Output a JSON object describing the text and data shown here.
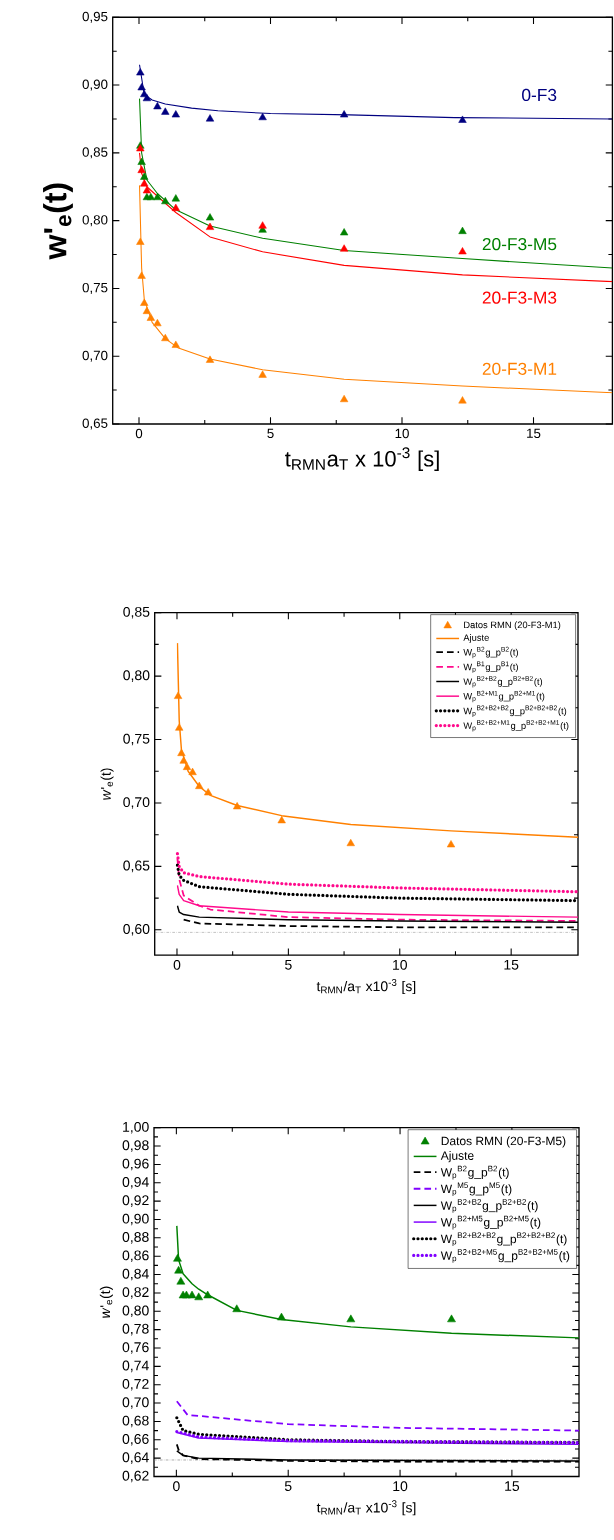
{
  "chart_data": [
    {
      "type": "line",
      "xlabel": "t$_{RMN}$a$_{T}$ x 10$^{-3}$ [s]",
      "ylabel": "w'$_{e}$(t)",
      "xlim": [
        -1,
        18
      ],
      "ylim": [
        0.65,
        0.95
      ],
      "xticks": [
        0,
        5,
        10,
        15
      ],
      "yticks": [
        {
          "value": 0.65,
          "label": "0,65"
        },
        {
          "value": 0.7,
          "label": "0,70"
        },
        {
          "value": 0.75,
          "label": "0,75"
        },
        {
          "value": 0.8,
          "label": "0,80"
        },
        {
          "value": 0.85,
          "label": "0,85"
        },
        {
          "value": 0.9,
          "label": "0,90"
        },
        {
          "value": 0.95,
          "label": "0,95"
        }
      ],
      "legend": false,
      "series": [
        {
          "type": "scatter",
          "marker": "triangle",
          "color": "#000080",
          "x": [
            0.05,
            0.1,
            0.2,
            0.3,
            0.7,
            1.0,
            1.4,
            2.7,
            4.7,
            7.8,
            12.3
          ],
          "values": [
            0.909,
            0.898,
            0.893,
            0.89,
            0.884,
            0.88,
            0.878,
            0.875,
            0.876,
            0.878,
            0.874
          ]
        },
        {
          "type": "line",
          "name": "0-F3",
          "color": "#000080",
          "line_style": "solid",
          "x": [
            0.02,
            0.2,
            0.5,
            1,
            2,
            3,
            5,
            8,
            12,
            18
          ],
          "values": [
            0.915,
            0.893,
            0.889,
            0.886,
            0.883,
            0.881,
            0.879,
            0.878,
            0.876,
            0.875
          ]
        },
        {
          "type": "scatter",
          "marker": "triangle",
          "color": "#008000",
          "x": [
            0.05,
            0.1,
            0.2,
            0.3,
            0.45,
            0.7,
            1.0,
            1.4,
            2.7,
            4.7,
            7.8,
            12.3
          ],
          "values": [
            0.855,
            0.843,
            0.832,
            0.817,
            0.817,
            0.817,
            0.814,
            0.816,
            0.802,
            0.793,
            0.791,
            0.792
          ]
        },
        {
          "type": "line",
          "name": "20-F3-M5",
          "color": "#008000",
          "line_style": "solid",
          "x": [
            0.02,
            0.1,
            0.3,
            0.7,
            1.4,
            2.7,
            4.7,
            7.8,
            12.3,
            18
          ],
          "values": [
            0.89,
            0.85,
            0.83,
            0.82,
            0.808,
            0.796,
            0.787,
            0.778,
            0.772,
            0.765
          ]
        },
        {
          "type": "scatter",
          "marker": "triangle",
          "color": "#ff0000",
          "x": [
            0.05,
            0.1,
            0.2,
            0.3,
            1.4,
            2.7,
            4.7,
            7.8,
            12.3
          ],
          "values": [
            0.853,
            0.837,
            0.827,
            0.822,
            0.809,
            0.795,
            0.796,
            0.779,
            0.777
          ]
        },
        {
          "type": "line",
          "name": "20-F3-M3",
          "color": "#ff0000",
          "line_style": "solid",
          "x": [
            0.02,
            0.1,
            0.3,
            0.7,
            1.4,
            2.7,
            4.7,
            7.8,
            12.3,
            18
          ],
          "values": [
            0.85,
            0.835,
            0.825,
            0.818,
            0.806,
            0.788,
            0.777,
            0.767,
            0.76,
            0.755
          ]
        },
        {
          "type": "scatter",
          "marker": "triangle",
          "color": "#ff8000",
          "x": [
            0.05,
            0.1,
            0.2,
            0.3,
            0.45,
            0.7,
            1.0,
            1.4,
            2.7,
            4.7,
            7.8,
            12.3
          ],
          "values": [
            0.784,
            0.759,
            0.739,
            0.733,
            0.728,
            0.724,
            0.713,
            0.708,
            0.697,
            0.686,
            0.668,
            0.667
          ]
        },
        {
          "type": "line",
          "name": "20-F3-M1",
          "color": "#ff8000",
          "line_style": "solid",
          "x": [
            0.02,
            0.1,
            0.2,
            0.5,
            1,
            1.5,
            2.7,
            4.7,
            7.8,
            12.3,
            18
          ],
          "values": [
            0.826,
            0.765,
            0.742,
            0.725,
            0.713,
            0.706,
            0.698,
            0.69,
            0.683,
            0.678,
            0.673
          ]
        }
      ]
    },
    {
      "type": "line",
      "xlabel": "t$_{RMN}$/a$_{T}$ x10$^{-3}$ [s]",
      "ylabel": "*w*'$_{e}$(t)",
      "xlim": [
        -1,
        18
      ],
      "ylim": [
        0.58,
        0.85
      ],
      "xticks": [
        0,
        5,
        10,
        15
      ],
      "yticks": [
        {
          "value": 0.6,
          "label": "0,60"
        },
        {
          "value": 0.65,
          "label": "0,65"
        },
        {
          "value": 0.7,
          "label": "0,70"
        },
        {
          "value": 0.75,
          "label": "0,75"
        },
        {
          "value": 0.8,
          "label": "0,80"
        },
        {
          "value": 0.85,
          "label": "0,85"
        }
      ],
      "legend": "top right",
      "ref_lines": [
        {
          "axis": "y",
          "value": 0.598,
          "color": "#808080",
          "line_style": "dotted"
        }
      ],
      "series": [
        {
          "type": "scatter",
          "name": "Datos RMN (20-F3-M1)",
          "marker": "triangle",
          "color": "#ff8000",
          "x": [
            0.05,
            0.1,
            0.2,
            0.3,
            0.45,
            0.7,
            1.0,
            1.4,
            2.7,
            4.7,
            7.8,
            12.3
          ],
          "values": [
            0.784,
            0.759,
            0.739,
            0.733,
            0.728,
            0.724,
            0.713,
            0.708,
            0.697,
            0.686,
            0.668,
            0.667
          ]
        },
        {
          "type": "line",
          "name": "Ajuste",
          "color": "#ff8000",
          "line_style": "solid",
          "x": [
            0.02,
            0.1,
            0.2,
            0.5,
            1,
            1.5,
            2.7,
            4.7,
            7.8,
            12.3,
            18
          ],
          "values": [
            0.826,
            0.765,
            0.742,
            0.725,
            0.713,
            0.706,
            0.698,
            0.69,
            0.683,
            0.678,
            0.673
          ]
        },
        {
          "type": "line",
          "name": "W$_{p}$$^{B2}$g_p$^{B2}$(t)",
          "color": "#000000",
          "line_style": "dashed",
          "x": [
            0.3,
            1,
            5,
            10,
            18
          ],
          "values": [
            0.608,
            0.605,
            0.603,
            0.602,
            0.602
          ]
        },
        {
          "type": "line",
          "name": "W$_{p}$$^{B1}$g_p$^{B1}$(t)",
          "color": "#ff0a8c",
          "line_style": "dashed",
          "x": [
            0.02,
            0.1,
            0.3,
            1,
            1.5,
            5,
            10,
            18
          ],
          "values": [
            0.656,
            0.64,
            0.627,
            0.619,
            0.616,
            0.61,
            0.608,
            0.607
          ]
        },
        {
          "type": "line",
          "name": "W$_{p}$$^{B2+B2}$g_p$^{B2+B2}$(t)",
          "color": "#000000",
          "line_style": "solid",
          "x": [
            0.02,
            0.1,
            0.3,
            1,
            5,
            10,
            18
          ],
          "values": [
            0.619,
            0.614,
            0.612,
            0.61,
            0.608,
            0.607,
            0.606
          ]
        },
        {
          "type": "line",
          "name": "W$_{p}$$^{B2+M1}$g_p$^{B2+M1}$(t)",
          "color": "#ff0a8c",
          "line_style": "solid",
          "x": [
            0.02,
            0.1,
            0.3,
            1,
            5,
            10,
            18
          ],
          "values": [
            0.635,
            0.628,
            0.623,
            0.619,
            0.614,
            0.612,
            0.61
          ]
        },
        {
          "type": "line",
          "name": "W$_{p}$$^{B2+B2+B2}$g_p$^{B2+B2+B2}$(t)",
          "color": "#000000",
          "line_style": "dotted",
          "x": [
            0.02,
            0.1,
            0.3,
            1,
            5,
            10,
            18
          ],
          "values": [
            0.651,
            0.643,
            0.639,
            0.634,
            0.628,
            0.625,
            0.623
          ]
        },
        {
          "type": "line",
          "name": "W$_{p}$$^{B2+B2+M1}$g_p$^{B2+B2+M1}$(t)",
          "color": "#ff0a8c",
          "line_style": "dotted",
          "x": [
            0.02,
            0.1,
            0.3,
            1,
            5,
            10,
            18
          ],
          "values": [
            0.66,
            0.65,
            0.645,
            0.642,
            0.636,
            0.633,
            0.63
          ]
        }
      ]
    },
    {
      "type": "line",
      "xlabel": "t$_{RMN}$/a$_{T}$ x10$^{-3}$ [s]",
      "ylabel": "*w*'$_{e}$(t)",
      "xlim": [
        -1,
        18
      ],
      "ylim": [
        0.62,
        1.0
      ],
      "xticks": [
        0,
        5,
        10,
        15
      ],
      "yticks": [
        {
          "value": 0.62,
          "label": "0,62"
        },
        {
          "value": 0.64,
          "label": "0,64"
        },
        {
          "value": 0.66,
          "label": "0,66"
        },
        {
          "value": 0.68,
          "label": "0,68"
        },
        {
          "value": 0.7,
          "label": "0,70"
        },
        {
          "value": 0.72,
          "label": "0,72"
        },
        {
          "value": 0.74,
          "label": "0,74"
        },
        {
          "value": 0.76,
          "label": "0,76"
        },
        {
          "value": 0.78,
          "label": "0,78"
        },
        {
          "value": 0.8,
          "label": "0,80"
        },
        {
          "value": 0.82,
          "label": "0,82"
        },
        {
          "value": 0.84,
          "label": "0,84"
        },
        {
          "value": 0.86,
          "label": "0,86"
        },
        {
          "value": 0.88,
          "label": "0,88"
        },
        {
          "value": 0.9,
          "label": "0,90"
        },
        {
          "value": 0.92,
          "label": "0,92"
        },
        {
          "value": 0.94,
          "label": "0,94"
        },
        {
          "value": 0.96,
          "label": "0,96"
        },
        {
          "value": 0.98,
          "label": "0,98"
        },
        {
          "value": 1.0,
          "label": "1,00"
        }
      ],
      "legend": "top right",
      "ref_lines": [
        {
          "axis": "y",
          "value": 0.638,
          "color": "#808080",
          "line_style": "dotted"
        }
      ],
      "series": [
        {
          "type": "scatter",
          "name": "Datos RMN (20-F3-M5)",
          "marker": "triangle",
          "color": "#008000",
          "x": [
            0.05,
            0.1,
            0.2,
            0.3,
            0.45,
            0.7,
            1.0,
            1.4,
            2.7,
            4.7,
            7.8,
            12.3
          ],
          "values": [
            0.857,
            0.844,
            0.832,
            0.817,
            0.817,
            0.817,
            0.815,
            0.817,
            0.802,
            0.793,
            0.791,
            0.791
          ]
        },
        {
          "type": "line",
          "name": "Ajuste",
          "color": "#008000",
          "line_style": "solid",
          "x": [
            0.02,
            0.1,
            0.3,
            0.7,
            1.0,
            1.4,
            2.7,
            4.7,
            7.8,
            12.3,
            18
          ],
          "values": [
            0.893,
            0.856,
            0.841,
            0.83,
            0.824,
            0.818,
            0.801,
            0.791,
            0.783,
            0.776,
            0.771
          ]
        },
        {
          "type": "line",
          "name": "W$_{p}$$^{B2}$g_p$^{B2}$(t)",
          "color": "#000000",
          "line_style": "dashed",
          "x": [
            0.02,
            0.1,
            0.3,
            1,
            5,
            10,
            18
          ],
          "values": [
            0.655,
            0.649,
            0.643,
            0.639,
            0.637,
            0.636,
            0.636
          ]
        },
        {
          "type": "line",
          "name": "W$_{p}$$^{M5}$g_p$^{M5}$(t)",
          "color": "#8000ff",
          "line_style": "dashed",
          "x": [
            0.02,
            0.5,
            1,
            5,
            10,
            18
          ],
          "values": [
            0.702,
            0.687,
            0.686,
            0.677,
            0.673,
            0.67
          ]
        },
        {
          "type": "line",
          "name": "W$_{p}$$^{B2+B2}$g_p$^{B2+B2}$(t)",
          "color": "#000000",
          "line_style": "solid",
          "x": [
            0.02,
            0.3,
            1,
            5,
            18
          ],
          "values": [
            0.648,
            0.643,
            0.64,
            0.638,
            0.637
          ]
        },
        {
          "type": "line",
          "name": "W$_{p}$$^{B2+M5}$g_p$^{B2+M5}$(t)",
          "color": "#8000ff",
          "line_style": "solid",
          "x": [
            0.02,
            1,
            5,
            18
          ],
          "values": [
            0.668,
            0.662,
            0.658,
            0.655
          ]
        },
        {
          "type": "line",
          "name": "W$_{p}$$^{B2+B2+B2}$g_p$^{B2+B2+B2}$(t)",
          "color": "#000000",
          "line_style": "dotted",
          "x": [
            0.02,
            0.3,
            1,
            5,
            10,
            18
          ],
          "values": [
            0.684,
            0.67,
            0.666,
            0.66,
            0.658,
            0.657
          ]
        },
        {
          "type": "line",
          "name": "W$_{p}$$^{B2+B2+M5}$g_p$^{B2+B2+M5}$(t)",
          "color": "#8000ff",
          "line_style": "dotted",
          "x": [
            0.02,
            1,
            5,
            18
          ],
          "values": [
            0.669,
            0.663,
            0.659,
            0.657
          ]
        }
      ]
    }
  ]
}
